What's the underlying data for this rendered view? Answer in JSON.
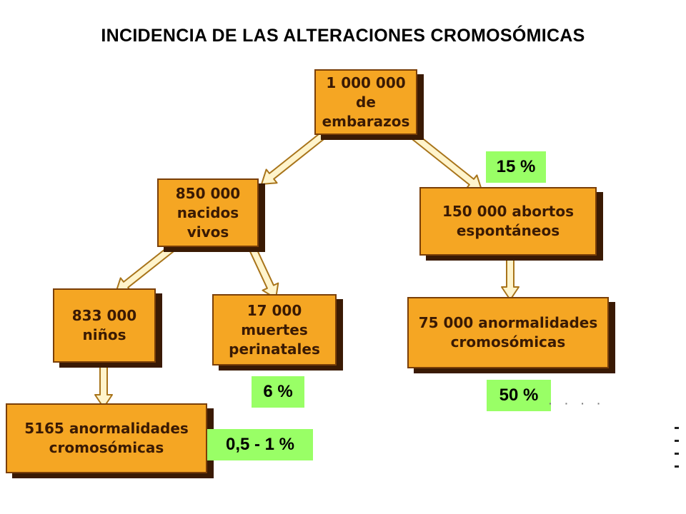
{
  "title": "INCIDENCIA DE LAS ALTERACIONES CROMOSÓMICAS",
  "colors": {
    "box_fill": "#f5a623",
    "box_border": "#7a3f08",
    "box_shadow": "#3a1a04",
    "box_text": "#3a1a04",
    "tag_fill": "#99ff66",
    "arrow_fill": "#fff4cc",
    "arrow_stroke": "#a8741a"
  },
  "nodes": {
    "embarazos": "1 000 000 de\nembarazos",
    "nacidos_vivos": "850 000\nnacidos vivos",
    "abortos": "150 000 abortos\nespontáneos",
    "ninos": "833 000 niños",
    "muertes": "17 000 muertes\nperinatales",
    "anorm_abortos": "75 000 anormalidades\ncromosómicas",
    "anorm_ninos": "5165 anormalidades\ncromosómicas"
  },
  "percentages": {
    "abortos": "15 %",
    "muertes": "6 %",
    "anorm_abortos": "50 %",
    "anorm_ninos": "0,5 - 1 %"
  }
}
